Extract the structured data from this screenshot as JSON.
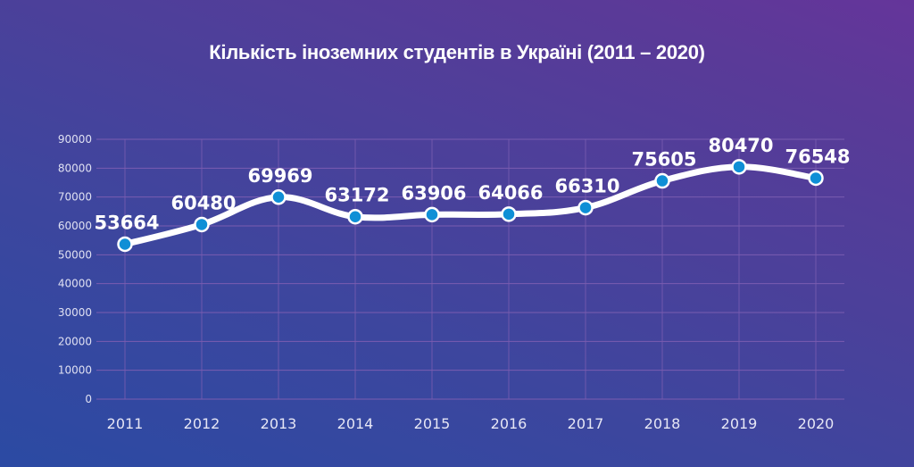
{
  "chart_data": {
    "type": "line",
    "title": "Кількість іноземних студентів в Україні (2011 – 2020)",
    "xlabel": "",
    "ylabel": "",
    "categories": [
      "2011",
      "2012",
      "2013",
      "2014",
      "2015",
      "2016",
      "2017",
      "2018",
      "2019",
      "2020"
    ],
    "series": [
      {
        "name": "Кількість іноземних студентів",
        "values": [
          53664,
          60480,
          69969,
          63172,
          63906,
          64066,
          66310,
          75605,
          80470,
          76548
        ]
      }
    ],
    "value_labels": [
      "53664",
      "60480",
      "69969",
      "63172",
      "63906",
      "64066",
      "66310",
      "75605",
      "80470",
      "76548"
    ],
    "yticks": [
      "0",
      "10000",
      "20000",
      "30000",
      "40000",
      "50000",
      "60000",
      "70000",
      "80000",
      "90000"
    ],
    "ylim": [
      0,
      90000
    ],
    "grid": true,
    "legend": "none",
    "colors": {
      "line": "#ffffff",
      "marker_fill": "#0f8fd6",
      "marker_stroke": "#ffffff",
      "grid": "#7a5cb0",
      "text": "#ffffff"
    }
  }
}
